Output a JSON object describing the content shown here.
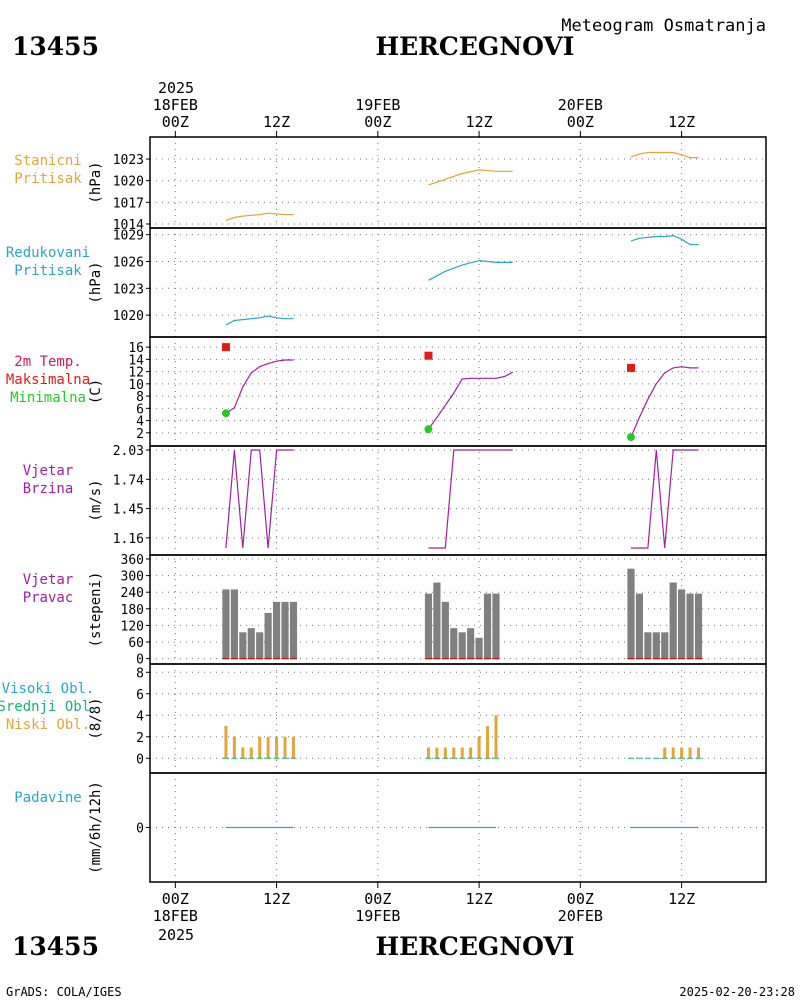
{
  "header": {
    "station_id": "13455",
    "station_name": "HERCEGNOVI",
    "chart_title": "Meteogram Osmatranja"
  },
  "footer": {
    "station_id": "13455",
    "station_name": "HERCEGNOVI",
    "credit": "GrADS: COLA/IGES",
    "timestamp": "2025-02-20-23:28"
  },
  "time_axis": {
    "top_year": "2025",
    "bottom_year": "2025",
    "tick_labels": [
      {
        "hour": 0,
        "label": "00Z",
        "date": "18FEB"
      },
      {
        "hour": 12,
        "label": "12Z",
        "date": ""
      },
      {
        "hour": 24,
        "label": "00Z",
        "date": "19FEB"
      },
      {
        "hour": 36,
        "label": "12Z",
        "date": ""
      },
      {
        "hour": 48,
        "label": "00Z",
        "date": "20FEB"
      },
      {
        "hour": 60,
        "label": "12Z",
        "date": ""
      }
    ],
    "xlim_hours": [
      -3,
      70
    ]
  },
  "colors": {
    "station_pressure": "#e0a63c",
    "reduced_pressure": "#2aa7c0",
    "temperature": "#a0209f",
    "tmax": "#e61919",
    "tmin": "#22cc22",
    "wind_speed": "#a0209f",
    "wind_dir": "#808080",
    "wind_dir_base": "#c81e1e",
    "cloud_high": "#22aac8",
    "cloud_mid": "#1db07a",
    "cloud_low": "#e0a63c",
    "precip": "#2aa7c0"
  },
  "chart_data": [
    {
      "type": "line",
      "panel": "station_pressure",
      "label_lines": [
        "Stanicni",
        "Pritisak"
      ],
      "ylabel": "(hPa)",
      "ylim": [
        1014,
        1025.5
      ],
      "yticks": [
        1014,
        1017,
        1020,
        1023
      ],
      "grid": true,
      "series": [
        {
          "segments": [
            {
              "x": [
                6,
                7,
                8,
                9,
                10,
                11,
                12,
                13,
                14
              ],
              "y": [
                1014.5,
                1014.9,
                1015.1,
                1015.2,
                1015.3,
                1015.5,
                1015.4,
                1015.3,
                1015.3
              ]
            },
            {
              "x": [
                30,
                32,
                34,
                36,
                38,
                40
              ],
              "y": [
                1019.4,
                1020.2,
                1021.0,
                1021.5,
                1021.3,
                1021.3
              ]
            },
            {
              "x": [
                54,
                55,
                56,
                57,
                58,
                59,
                60,
                61,
                62
              ],
              "y": [
                1023.3,
                1023.7,
                1023.9,
                1023.9,
                1023.9,
                1023.9,
                1023.6,
                1023.2,
                1023.2
              ]
            }
          ]
        }
      ]
    },
    {
      "type": "line",
      "panel": "reduced_pressure",
      "label_lines": [
        "Redukovani",
        "Pritisak"
      ],
      "ylabel": "(hPa)",
      "ylim": [
        1018,
        1029.3
      ],
      "yticks": [
        1020,
        1023,
        1026,
        1029
      ],
      "grid": true,
      "series": [
        {
          "segments": [
            {
              "x": [
                6,
                7,
                8,
                9,
                10,
                11,
                12,
                13,
                14
              ],
              "y": [
                1018.9,
                1019.4,
                1019.5,
                1019.6,
                1019.7,
                1019.9,
                1019.7,
                1019.6,
                1019.6
              ]
            },
            {
              "x": [
                30,
                32,
                34,
                36,
                38,
                40
              ],
              "y": [
                1023.9,
                1024.9,
                1025.6,
                1026.1,
                1025.9,
                1025.9
              ]
            },
            {
              "x": [
                54,
                55,
                56,
                57,
                58,
                59,
                60,
                61,
                62
              ],
              "y": [
                1028.3,
                1028.6,
                1028.7,
                1028.8,
                1028.8,
                1028.9,
                1028.5,
                1027.9,
                1027.9
              ]
            }
          ]
        }
      ]
    },
    {
      "type": "line",
      "panel": "temperature",
      "label_lines": [
        "2m Temp.",
        "Maksimalna",
        "Minimalna"
      ],
      "ylabel": "(C)",
      "ylim": [
        0.5,
        17
      ],
      "yticks": [
        2,
        4,
        6,
        8,
        10,
        12,
        14,
        16
      ],
      "grid": true,
      "series": [
        {
          "segments": [
            {
              "x": [
                6,
                7,
                8,
                9,
                10,
                11,
                12,
                13,
                14
              ],
              "y": [
                5.2,
                6.1,
                9.5,
                11.8,
                12.8,
                13.3,
                13.7,
                13.9,
                13.9
              ]
            },
            {
              "x": [
                30,
                31,
                32,
                33,
                34,
                35,
                36,
                37,
                38,
                39,
                40
              ],
              "y": [
                2.6,
                4.5,
                6.5,
                8.5,
                10.8,
                10.9,
                10.9,
                10.9,
                10.9,
                11.2,
                11.9
              ]
            },
            {
              "x": [
                54,
                55,
                56,
                57,
                58,
                59,
                60,
                61,
                62
              ],
              "y": [
                1.3,
                4.5,
                7.5,
                10.0,
                11.8,
                12.6,
                12.8,
                12.6,
                12.6
              ]
            }
          ]
        }
      ],
      "tmax": {
        "x": [
          6,
          30,
          54
        ],
        "y": [
          16.0,
          14.6,
          12.6
        ]
      },
      "tmin": {
        "x": [
          6,
          30,
          54
        ],
        "y": [
          5.2,
          2.6,
          1.3
        ]
      }
    },
    {
      "type": "line",
      "panel": "wind_speed",
      "label_lines": [
        "Vjetar",
        "Brzina"
      ],
      "ylabel": "(m/s)",
      "ylim": [
        1.03,
        2.03
      ],
      "yticks": [
        1.16,
        1.45,
        1.74,
        2.03
      ],
      "ytick_labels": [
        "1.16",
        "1.45",
        "1.74",
        "2.03"
      ],
      "grid": true,
      "series": [
        {
          "segments": [
            {
              "x": [
                6,
                7,
                8,
                9,
                10,
                11,
                12,
                13,
                14
              ],
              "y": [
                1.06,
                2.03,
                1.06,
                2.03,
                2.03,
                1.06,
                2.03,
                2.03,
                2.03
              ]
            },
            {
              "x": [
                30,
                32,
                33,
                35,
                36,
                38,
                40
              ],
              "y": [
                1.06,
                1.06,
                2.03,
                2.03,
                2.03,
                2.03,
                2.03
              ]
            },
            {
              "x": [
                54,
                56,
                57,
                58,
                59,
                60,
                61,
                62
              ],
              "y": [
                1.06,
                1.06,
                2.03,
                1.06,
                2.03,
                2.03,
                2.03,
                2.03
              ]
            }
          ]
        }
      ]
    },
    {
      "type": "bar",
      "panel": "wind_direction",
      "label_lines": [
        "Vjetar",
        "Pravac"
      ],
      "ylabel": "(stepeni)",
      "ylim": [
        -5,
        360
      ],
      "yticks": [
        0,
        60,
        120,
        180,
        240,
        300,
        360
      ],
      "grid": true,
      "x": [
        6,
        7,
        8,
        9,
        10,
        11,
        12,
        13,
        14,
        30,
        31,
        32,
        33,
        34,
        35,
        36,
        37,
        38,
        54,
        55,
        56,
        57,
        58,
        59,
        60,
        61,
        62
      ],
      "values": [
        250,
        250,
        95,
        110,
        95,
        165,
        205,
        205,
        205,
        235,
        275,
        205,
        110,
        95,
        110,
        75,
        235,
        235,
        325,
        235,
        95,
        95,
        95,
        275,
        250,
        235,
        235
      ]
    },
    {
      "type": "bar",
      "panel": "clouds",
      "label_lines": [
        "Visoki Obl.",
        "Srednji Obl.",
        "Niski Obl."
      ],
      "ylabel": "(8/8)",
      "ylim": [
        -1,
        8.4
      ],
      "yticks": [
        0,
        2,
        4,
        6,
        8
      ],
      "grid": true,
      "series": [
        {
          "name": "Niski Obl.",
          "x": [
            6,
            7,
            8,
            9,
            10,
            11,
            12,
            13,
            14,
            30,
            31,
            32,
            33,
            34,
            35,
            36,
            37,
            38,
            54,
            55,
            56,
            57,
            58,
            59,
            60,
            61,
            62
          ],
          "values": [
            3,
            2,
            1,
            1,
            2,
            2,
            2,
            2,
            2,
            1,
            1,
            1,
            1,
            1,
            1,
            2,
            3,
            4,
            0,
            0,
            0,
            0,
            1,
            1,
            1,
            1,
            1
          ]
        }
      ]
    },
    {
      "type": "line",
      "panel": "precipitation",
      "label_lines": [
        "Padavine"
      ],
      "ylabel": "(mm/6h/12h)",
      "ylim": [
        -5,
        5
      ],
      "yticks": [
        0
      ],
      "grid": true,
      "series": [
        {
          "segments": [
            {
              "x": [
                6,
                14
              ],
              "y": [
                0,
                0
              ]
            },
            {
              "x": [
                30,
                38
              ],
              "y": [
                0,
                0
              ]
            },
            {
              "x": [
                54,
                62
              ],
              "y": [
                0,
                0
              ]
            }
          ]
        }
      ]
    }
  ]
}
